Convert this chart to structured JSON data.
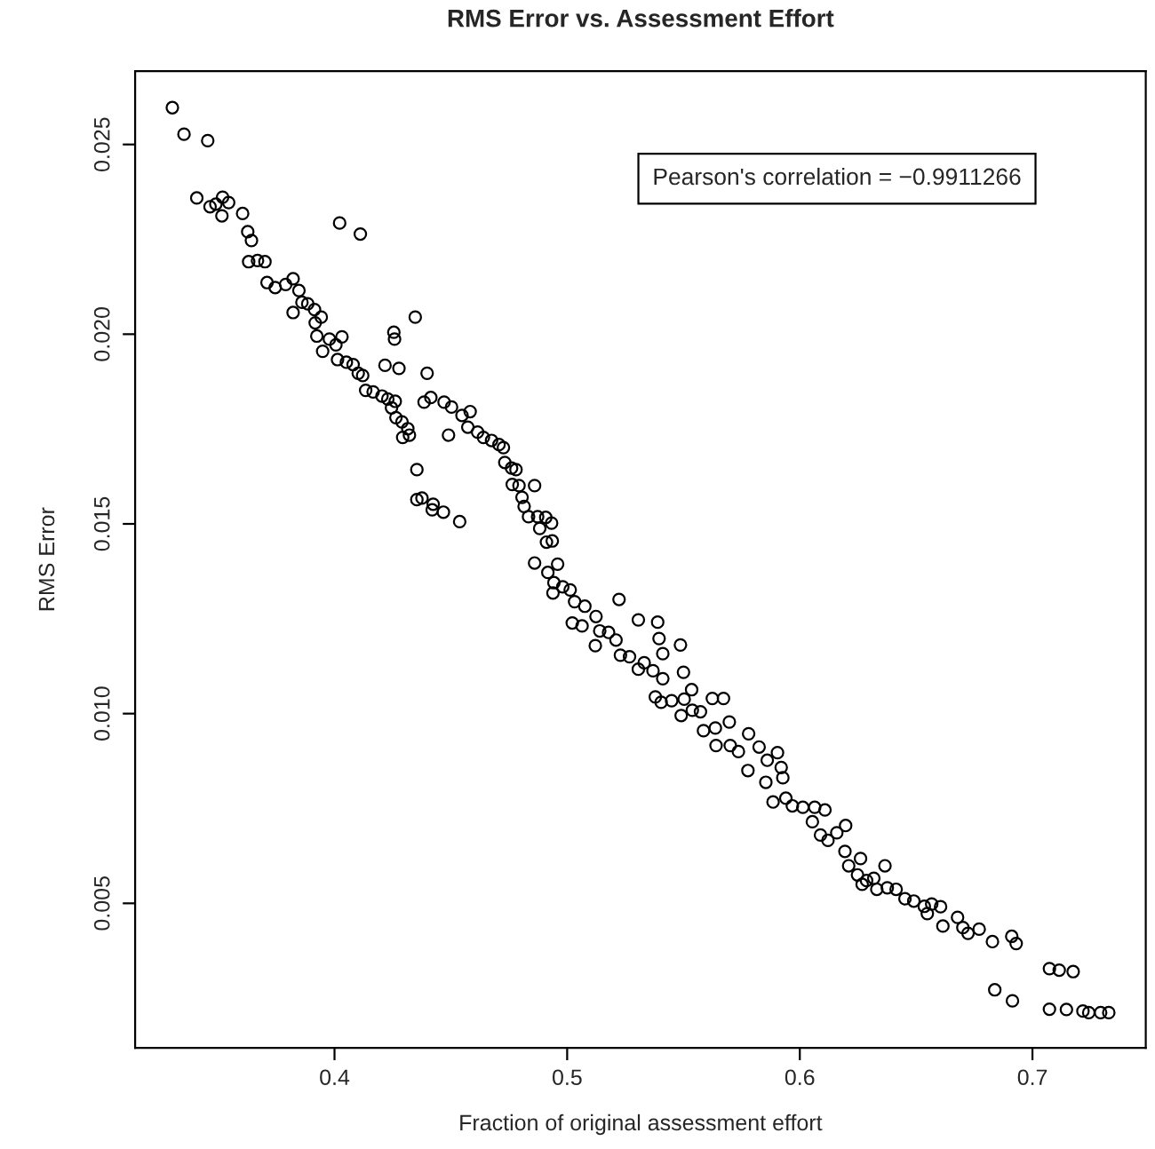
{
  "chart_data": {
    "type": "scatter",
    "title": "RMS Error vs. Assessment Effort",
    "xlabel": "Fraction of original assessment effort",
    "ylabel": "RMS Error",
    "annotations": [
      "Pearson's correlation = −0.9911266"
    ],
    "xlim": [
      0.3143,
      0.7487
    ],
    "ylim": [
      0.00119,
      0.02693
    ],
    "xticks": [
      0.4,
      0.5,
      0.6,
      0.7
    ],
    "yticks": [
      0.005,
      {
        "value": 0.01,
        "label": "0.010"
      },
      0.015,
      {
        "value": 0.02,
        "label": "0.020"
      },
      0.025
    ],
    "grid": false,
    "legend": false,
    "marker": "circle",
    "series": [
      {
        "color": "#000000",
        "x": [
          0.3303,
          0.3353,
          0.3455,
          0.3408,
          0.3465,
          0.349,
          0.3519,
          0.3516,
          0.3545,
          0.3605,
          0.3627,
          0.3643,
          0.3631,
          0.3669,
          0.3701,
          0.371,
          0.3745,
          0.379,
          0.3822,
          0.3847,
          0.3822,
          0.386,
          0.3885,
          0.3914,
          0.3917,
          0.3943,
          0.3924,
          0.3949,
          0.3978,
          0.4006,
          0.4032,
          0.4013,
          0.4051,
          0.408,
          0.4102,
          0.4121,
          0.4134,
          0.4166,
          0.4204,
          0.4229,
          0.4261,
          0.4245,
          0.4264,
          0.429,
          0.4315,
          0.4293,
          0.4322,
          0.4022,
          0.4111,
          0.4347,
          0.4255,
          0.4258,
          0.4217,
          0.4277,
          0.4398,
          0.4385,
          0.4414,
          0.4471,
          0.4503,
          0.4548,
          0.4583,
          0.449,
          0.4354,
          0.4354,
          0.4376,
          0.4424,
          0.442,
          0.4468,
          0.4538,
          0.4573,
          0.4615,
          0.464,
          0.4675,
          0.4707,
          0.4726,
          0.4732,
          0.4761,
          0.478,
          0.4764,
          0.4793,
          0.486,
          0.4806,
          0.4815,
          0.4834,
          0.4873,
          0.4908,
          0.4933,
          0.4882,
          0.4911,
          0.4936,
          0.486,
          0.4959,
          0.4917,
          0.4943,
          0.4981,
          0.5013,
          0.4939,
          0.5032,
          0.5076,
          0.5223,
          0.5022,
          0.5064,
          0.5124,
          0.514,
          0.5121,
          0.5178,
          0.521,
          0.5229,
          0.5268,
          0.5306,
          0.5389,
          0.5395,
          0.5411,
          0.5331,
          0.5306,
          0.5369,
          0.5411,
          0.5487,
          0.55,
          0.5379,
          0.5404,
          0.5449,
          0.5503,
          0.549,
          0.5535,
          0.5538,
          0.5573,
          0.5586,
          0.5624,
          0.5672,
          0.5637,
          0.5697,
          0.564,
          0.5701,
          0.5736,
          0.578,
          0.5777,
          0.5825,
          0.586,
          0.5854,
          0.5904,
          0.592,
          0.5927,
          0.5885,
          0.594,
          0.5968,
          0.6013,
          0.6064,
          0.6108,
          0.6054,
          0.6089,
          0.6121,
          0.6159,
          0.6197,
          0.6194,
          0.621,
          0.6261,
          0.6248,
          0.6287,
          0.6268,
          0.6318,
          0.6366,
          0.6331,
          0.6376,
          0.6414,
          0.6452,
          0.649,
          0.6535,
          0.6567,
          0.6548,
          0.6605,
          0.6615,
          0.6678,
          0.6701,
          0.6723,
          0.6771,
          0.6828,
          0.6911,
          0.693,
          0.6838,
          0.6914,
          0.7073,
          0.7115,
          0.7175,
          0.7073,
          0.7146,
          0.7217,
          0.7242,
          0.7293,
          0.7328
        ],
        "values": [
          0.02597,
          0.02527,
          0.0251,
          0.02359,
          0.02336,
          0.02343,
          0.02361,
          0.02312,
          0.02347,
          0.02318,
          0.0227,
          0.02247,
          0.02191,
          0.02194,
          0.02191,
          0.02136,
          0.02123,
          0.02131,
          0.02146,
          0.02115,
          0.02057,
          0.02084,
          0.0208,
          0.02065,
          0.0203,
          0.02045,
          0.01995,
          0.01955,
          0.01987,
          0.01972,
          0.01993,
          0.01933,
          0.01926,
          0.0192,
          0.01897,
          0.01891,
          0.01852,
          0.01848,
          0.01837,
          0.01829,
          0.01823,
          0.01806,
          0.0178,
          0.01769,
          0.01751,
          0.01728,
          0.01734,
          0.02293,
          0.02264,
          0.02045,
          0.02005,
          0.01987,
          0.01918,
          0.0191,
          0.01897,
          0.01821,
          0.01833,
          0.01821,
          0.01808,
          0.01786,
          0.01796,
          0.01734,
          0.01643,
          0.01564,
          0.01568,
          0.01552,
          0.01537,
          0.01531,
          0.01506,
          0.01755,
          0.01742,
          0.01728,
          0.0172,
          0.01709,
          0.01701,
          0.01662,
          0.01647,
          0.01643,
          0.01604,
          0.01601,
          0.01601,
          0.0157,
          0.01546,
          0.01519,
          0.01519,
          0.01517,
          0.01502,
          0.01488,
          0.01452,
          0.01455,
          0.01397,
          0.01394,
          0.01372,
          0.01345,
          0.01334,
          0.01326,
          0.01318,
          0.01295,
          0.01283,
          0.01301,
          0.01239,
          0.01231,
          0.01256,
          0.01218,
          0.01179,
          0.01214,
          0.01194,
          0.01154,
          0.0115,
          0.01247,
          0.01241,
          0.01198,
          0.01158,
          0.01134,
          0.01117,
          0.01113,
          0.01092,
          0.01181,
          0.01109,
          0.01044,
          0.0103,
          0.01034,
          0.01038,
          0.00995,
          0.01063,
          0.01009,
          0.01005,
          0.00955,
          0.0104,
          0.0104,
          0.00962,
          0.00978,
          0.00916,
          0.00916,
          0.009,
          0.00947,
          0.0085,
          0.00912,
          0.00877,
          0.00819,
          0.00897,
          0.00858,
          0.00831,
          0.00767,
          0.00777,
          0.00757,
          0.00753,
          0.00753,
          0.00746,
          0.00715,
          0.0068,
          0.00666,
          0.00686,
          0.00705,
          0.00637,
          0.00599,
          0.00618,
          0.00575,
          0.0056,
          0.0055,
          0.00566,
          0.00599,
          0.00537,
          0.00541,
          0.00537,
          0.00512,
          0.00506,
          0.00492,
          0.00498,
          0.00473,
          0.00491,
          0.0044,
          0.00463,
          0.00436,
          0.00421,
          0.00432,
          0.00399,
          0.00413,
          0.00394,
          0.00272,
          0.00243,
          0.00328,
          0.00324,
          0.0032,
          0.00221,
          0.0022,
          0.00216,
          0.00212,
          0.00212,
          0.00212
        ]
      }
    ]
  }
}
